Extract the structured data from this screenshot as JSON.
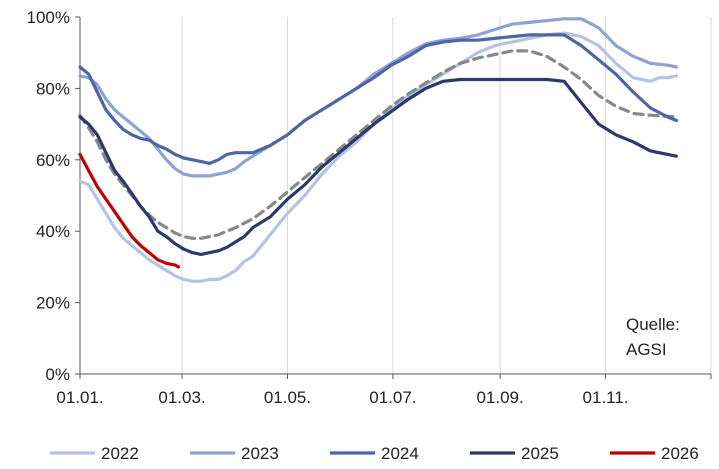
{
  "chart_data": {
    "type": "line",
    "title": "",
    "xlabel": "",
    "ylabel": "",
    "ylim": [
      0,
      100
    ],
    "y_unit": "%",
    "grid": "vertical",
    "legend_position": "bottom",
    "annotation": [
      "Quelle:",
      "AGSI"
    ],
    "x_ticks": [
      "01.01.",
      "01.03.",
      "01.05.",
      "01.07.",
      "01.09.",
      "01.11."
    ],
    "y_ticks": [
      "0%",
      "20%",
      "40%",
      "60%",
      "80%",
      "100%"
    ],
    "series": [
      {
        "name": "2022",
        "color": "#b4c3e2",
        "dashed": false,
        "points": [
          [
            0,
            54
          ],
          [
            5,
            53
          ],
          [
            10,
            49
          ],
          [
            15,
            45
          ],
          [
            20,
            41
          ],
          [
            25,
            38
          ],
          [
            30,
            36
          ],
          [
            40,
            32
          ],
          [
            50,
            29
          ],
          [
            55,
            27.5
          ],
          [
            60,
            26.5
          ],
          [
            65,
            26
          ],
          [
            70,
            26
          ],
          [
            75,
            26.5
          ],
          [
            80,
            26.5
          ],
          [
            85,
            27.5
          ],
          [
            90,
            29
          ],
          [
            95,
            31.5
          ],
          [
            100,
            33
          ],
          [
            105,
            36
          ],
          [
            110,
            39
          ],
          [
            120,
            45
          ],
          [
            130,
            50
          ],
          [
            140,
            56
          ],
          [
            150,
            61
          ],
          [
            160,
            65
          ],
          [
            170,
            70
          ],
          [
            180,
            74
          ],
          [
            190,
            78
          ],
          [
            200,
            81
          ],
          [
            210,
            84
          ],
          [
            220,
            87
          ],
          [
            230,
            90
          ],
          [
            240,
            92
          ],
          [
            250,
            93
          ],
          [
            260,
            94
          ],
          [
            270,
            95
          ],
          [
            280,
            95.5
          ],
          [
            290,
            94.5
          ],
          [
            300,
            92
          ],
          [
            310,
            87
          ],
          [
            320,
            83
          ],
          [
            330,
            82
          ],
          [
            335,
            83
          ],
          [
            340,
            83
          ],
          [
            345,
            83.5
          ]
        ]
      },
      {
        "name": "2023",
        "color": "#8fa2d2",
        "dashed": false,
        "points": [
          [
            0,
            83.5
          ],
          [
            5,
            83
          ],
          [
            10,
            81
          ],
          [
            15,
            77
          ],
          [
            20,
            74
          ],
          [
            25,
            72
          ],
          [
            30,
            70
          ],
          [
            35,
            68
          ],
          [
            40,
            66
          ],
          [
            45,
            63
          ],
          [
            50,
            60
          ],
          [
            55,
            57.5
          ],
          [
            60,
            56
          ],
          [
            65,
            55.5
          ],
          [
            70,
            55.5
          ],
          [
            75,
            55.5
          ],
          [
            80,
            56
          ],
          [
            85,
            56.5
          ],
          [
            90,
            57.5
          ],
          [
            95,
            59.5
          ],
          [
            100,
            61
          ],
          [
            110,
            64
          ],
          [
            120,
            67
          ],
          [
            130,
            71
          ],
          [
            140,
            74
          ],
          [
            150,
            77
          ],
          [
            160,
            80
          ],
          [
            170,
            84
          ],
          [
            180,
            87
          ],
          [
            190,
            90
          ],
          [
            200,
            92.5
          ],
          [
            210,
            93.5
          ],
          [
            220,
            94
          ],
          [
            230,
            95
          ],
          [
            240,
            96.5
          ],
          [
            250,
            98
          ],
          [
            260,
            98.5
          ],
          [
            270,
            99
          ],
          [
            280,
            99.5
          ],
          [
            290,
            99.5
          ],
          [
            300,
            97
          ],
          [
            310,
            92
          ],
          [
            320,
            89
          ],
          [
            330,
            87
          ],
          [
            340,
            86.5
          ],
          [
            345,
            86
          ]
        ]
      },
      {
        "name": "2024",
        "color": "#4f65a6",
        "dashed": false,
        "points": [
          [
            0,
            86
          ],
          [
            5,
            84
          ],
          [
            10,
            79
          ],
          [
            15,
            74
          ],
          [
            20,
            71
          ],
          [
            25,
            68.5
          ],
          [
            30,
            67
          ],
          [
            35,
            66
          ],
          [
            40,
            65.5
          ],
          [
            45,
            64
          ],
          [
            50,
            63
          ],
          [
            55,
            61.5
          ],
          [
            60,
            60.5
          ],
          [
            65,
            60
          ],
          [
            70,
            59.5
          ],
          [
            75,
            59
          ],
          [
            80,
            60
          ],
          [
            85,
            61.5
          ],
          [
            90,
            62
          ],
          [
            95,
            62
          ],
          [
            100,
            62
          ],
          [
            110,
            64
          ],
          [
            120,
            67
          ],
          [
            130,
            71
          ],
          [
            140,
            74
          ],
          [
            150,
            77
          ],
          [
            160,
            80
          ],
          [
            170,
            83
          ],
          [
            180,
            86.5
          ],
          [
            190,
            89
          ],
          [
            200,
            92
          ],
          [
            210,
            93
          ],
          [
            220,
            93.5
          ],
          [
            230,
            93.5
          ],
          [
            240,
            94
          ],
          [
            250,
            94.5
          ],
          [
            260,
            95
          ],
          [
            270,
            95
          ],
          [
            280,
            95
          ],
          [
            290,
            92
          ],
          [
            300,
            88
          ],
          [
            310,
            84
          ],
          [
            320,
            79
          ],
          [
            330,
            74.5
          ],
          [
            340,
            72
          ],
          [
            345,
            71
          ]
        ]
      },
      {
        "name": "2025",
        "color": "#2b3a6b",
        "dashed": false,
        "points": [
          [
            0,
            72
          ],
          [
            5,
            70
          ],
          [
            10,
            67
          ],
          [
            15,
            62
          ],
          [
            20,
            57
          ],
          [
            25,
            54
          ],
          [
            30,
            50.5
          ],
          [
            35,
            47
          ],
          [
            40,
            44
          ],
          [
            45,
            40
          ],
          [
            50,
            38.5
          ],
          [
            55,
            36.5
          ],
          [
            60,
            35
          ],
          [
            65,
            34
          ],
          [
            70,
            33.5
          ],
          [
            75,
            34
          ],
          [
            80,
            34.5
          ],
          [
            85,
            35.5
          ],
          [
            90,
            37
          ],
          [
            95,
            38.5
          ],
          [
            100,
            41
          ],
          [
            110,
            44
          ],
          [
            120,
            49
          ],
          [
            130,
            53
          ],
          [
            140,
            58
          ],
          [
            150,
            62
          ],
          [
            160,
            66
          ],
          [
            170,
            70
          ],
          [
            180,
            73.5
          ],
          [
            190,
            77
          ],
          [
            200,
            80
          ],
          [
            210,
            82
          ],
          [
            220,
            82.5
          ],
          [
            230,
            82.5
          ],
          [
            240,
            82.5
          ],
          [
            250,
            82.5
          ],
          [
            260,
            82.5
          ],
          [
            270,
            82.5
          ],
          [
            280,
            82
          ],
          [
            290,
            76
          ],
          [
            300,
            70
          ],
          [
            310,
            67
          ],
          [
            320,
            65
          ],
          [
            330,
            62.5
          ],
          [
            345,
            61
          ]
        ]
      },
      {
        "name": "2026",
        "color": "#c00000",
        "dashed": false,
        "points": [
          [
            0,
            61.5
          ],
          [
            5,
            57
          ],
          [
            10,
            52.5
          ],
          [
            15,
            49
          ],
          [
            20,
            45.5
          ],
          [
            25,
            42
          ],
          [
            30,
            38.5
          ],
          [
            35,
            36
          ],
          [
            40,
            34
          ],
          [
            45,
            32
          ],
          [
            50,
            31
          ],
          [
            55,
            30.5
          ],
          [
            57,
            30
          ]
        ]
      },
      {
        "name": "",
        "color": "#888888",
        "dashed": true,
        "points": [
          [
            0,
            72.5
          ],
          [
            5,
            69
          ],
          [
            10,
            65
          ],
          [
            15,
            60
          ],
          [
            20,
            56
          ],
          [
            25,
            53
          ],
          [
            30,
            50
          ],
          [
            35,
            47
          ],
          [
            40,
            44.5
          ],
          [
            45,
            42.5
          ],
          [
            50,
            41
          ],
          [
            55,
            39.5
          ],
          [
            60,
            38.5
          ],
          [
            65,
            38
          ],
          [
            70,
            38
          ],
          [
            75,
            38.5
          ],
          [
            80,
            39
          ],
          [
            90,
            41
          ],
          [
            100,
            43.5
          ],
          [
            110,
            47
          ],
          [
            120,
            51
          ],
          [
            130,
            55
          ],
          [
            140,
            59
          ],
          [
            150,
            63
          ],
          [
            160,
            67
          ],
          [
            170,
            71
          ],
          [
            180,
            75
          ],
          [
            190,
            78.5
          ],
          [
            200,
            81.5
          ],
          [
            210,
            84.5
          ],
          [
            220,
            87
          ],
          [
            230,
            88.5
          ],
          [
            240,
            89.5
          ],
          [
            250,
            90.5
          ],
          [
            260,
            90.5
          ],
          [
            270,
            89
          ],
          [
            280,
            86
          ],
          [
            290,
            82.5
          ],
          [
            300,
            78
          ],
          [
            310,
            75
          ],
          [
            320,
            73
          ],
          [
            330,
            72.5
          ],
          [
            345,
            72
          ]
        ]
      }
    ]
  }
}
